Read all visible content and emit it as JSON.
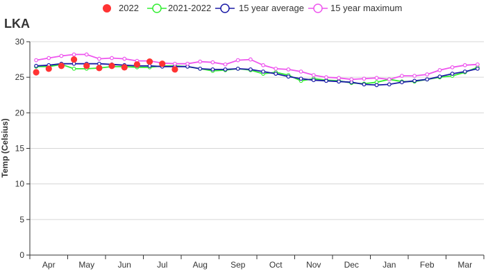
{
  "chart_data": {
    "type": "line",
    "title": "LKA",
    "ylabel": "Temp (Celsius)",
    "xlabel": "",
    "ylim": [
      0,
      30
    ],
    "yticks": [
      0,
      5,
      10,
      15,
      20,
      25,
      30
    ],
    "grid": true,
    "legend_position": "top",
    "month_labels": [
      "Apr",
      "May",
      "Jun",
      "Jul",
      "Aug",
      "Sep",
      "Oct",
      "Nov",
      "Dec",
      "Jan",
      "Feb",
      "Mar"
    ],
    "series": [
      {
        "name": "2022",
        "style": "dots",
        "color": "#ff3333",
        "values": [
          25.7,
          26.2,
          26.6,
          27.5,
          26.6,
          26.3,
          26.6,
          26.4,
          26.8,
          27.2,
          26.9,
          26.1
        ]
      },
      {
        "name": "2021-2022",
        "style": "line",
        "color": "#33ee33",
        "values": [
          26.5,
          26.5,
          26.8,
          26.2,
          26.2,
          26.3,
          26.5,
          26.5,
          26.4,
          26.4,
          26.6,
          26.6,
          26.5,
          26.2,
          25.9,
          26.0,
          26.2,
          26.0,
          25.5,
          25.7,
          25.3,
          24.5,
          24.8,
          24.6,
          24.5,
          24.2,
          24.1,
          24.3,
          24.7,
          24.4,
          24.4,
          24.7,
          25.0,
          25.2,
          25.7,
          26.4
        ]
      },
      {
        "name": "15 year average",
        "style": "line",
        "color": "#1a1aa6",
        "values": [
          26.6,
          26.7,
          26.9,
          26.9,
          26.9,
          26.9,
          26.8,
          26.7,
          26.6,
          26.6,
          26.5,
          26.5,
          26.5,
          26.2,
          26.1,
          26.1,
          26.2,
          26.1,
          25.8,
          25.5,
          25.1,
          24.8,
          24.6,
          24.5,
          24.4,
          24.3,
          24.0,
          23.9,
          24.0,
          24.3,
          24.5,
          24.7,
          25.1,
          25.5,
          25.8,
          26.2
        ]
      },
      {
        "name": "15 year maximum",
        "style": "line",
        "color": "#ee55ee",
        "values": [
          27.4,
          27.7,
          28.0,
          28.2,
          28.2,
          27.6,
          27.7,
          27.6,
          27.3,
          27.3,
          27.0,
          26.9,
          26.9,
          27.2,
          27.1,
          26.8,
          27.4,
          27.5,
          26.7,
          26.2,
          26.1,
          25.8,
          25.3,
          25.0,
          24.9,
          24.7,
          24.8,
          24.9,
          24.7,
          25.2,
          25.2,
          25.4,
          26.0,
          26.4,
          26.7,
          26.8
        ]
      }
    ]
  }
}
